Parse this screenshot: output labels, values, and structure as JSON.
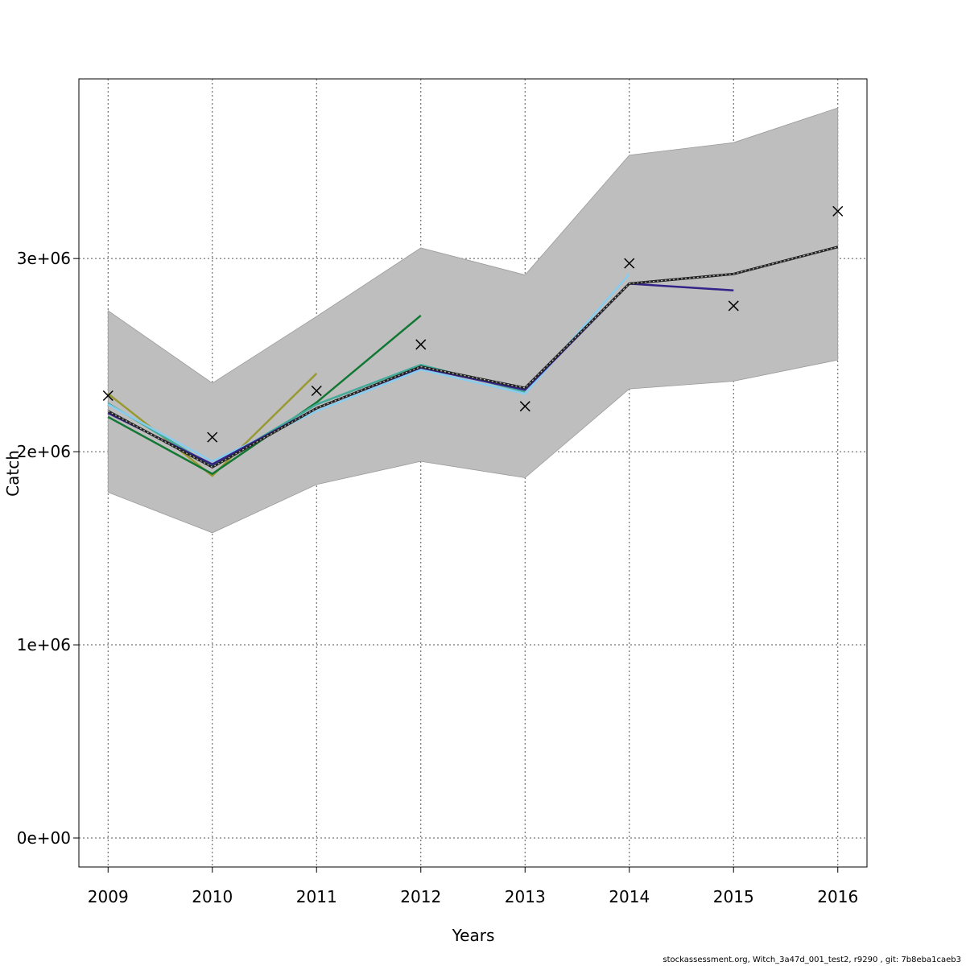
{
  "chart_data": {
    "type": "line",
    "title": "",
    "xlabel": "Years",
    "ylabel": "Catch",
    "x": [
      2009,
      2010,
      2011,
      2012,
      2013,
      2014,
      2015,
      2016
    ],
    "xlim": [
      2008.72,
      2016.28
    ],
    "ylim": [
      -150000,
      3930000
    ],
    "y_ticks": [
      0,
      1000000,
      2000000,
      3000000
    ],
    "y_tick_labels": [
      "0e+00",
      "1e+06",
      "2e+06",
      "3e+06"
    ],
    "grid": true,
    "confidence_band": {
      "color": "#bebebe",
      "lower": [
        1790000,
        1580000,
        1830000,
        1950000,
        1865000,
        2325000,
        2365000,
        2475000
      ],
      "upper": [
        2730000,
        2355000,
        2700000,
        3055000,
        2915000,
        3535000,
        3600000,
        3780000
      ]
    },
    "estimate": {
      "color": "#000000",
      "values": [
        2210000,
        1920000,
        2225000,
        2440000,
        2330000,
        2870000,
        2920000,
        3060000
      ]
    },
    "observed": {
      "marker": "cross",
      "color": "#000000",
      "values": [
        2290000,
        2075000,
        2315000,
        2555000,
        2235000,
        2975000,
        2755000,
        3245000
      ]
    },
    "retro_series": [
      {
        "color": "#999933",
        "x": [
          2009,
          2010,
          2011
        ],
        "values": [
          2300000,
          1875000,
          2405000
        ]
      },
      {
        "color": "#117733",
        "x": [
          2009,
          2010,
          2011,
          2012
        ],
        "values": [
          2180000,
          1885000,
          2255000,
          2705000
        ]
      },
      {
        "color": "#44aa99",
        "x": [
          2009,
          2010,
          2011,
          2012,
          2013
        ],
        "values": [
          2250000,
          1925000,
          2245000,
          2450000,
          2310000
        ]
      },
      {
        "color": "#88ccee",
        "x": [
          2009,
          2010,
          2011,
          2012,
          2013,
          2014
        ],
        "values": [
          2245000,
          1950000,
          2210000,
          2425000,
          2300000,
          2920000
        ]
      },
      {
        "color": "#332288",
        "x": [
          2009,
          2010,
          2011,
          2012,
          2013,
          2014,
          2015
        ],
        "values": [
          2200000,
          1935000,
          2225000,
          2435000,
          2320000,
          2870000,
          2835000
        ]
      }
    ]
  },
  "footer": "stockassessment.org, Witch_3a47d_001_test2, r9290 , git: 7b8eba1caeb3"
}
